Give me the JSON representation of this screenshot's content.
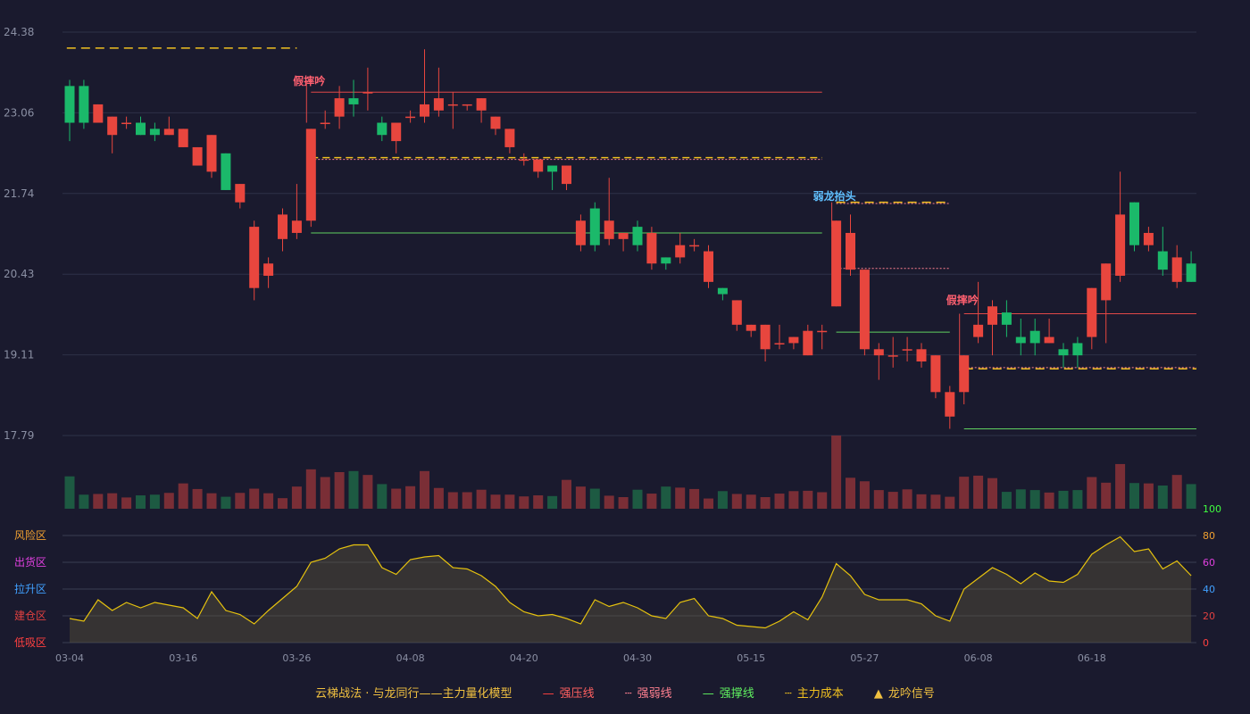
{
  "chart_data": {
    "type": "candlestick",
    "y_ticks": [
      "24.38",
      "23.06",
      "21.74",
      "20.43",
      "19.11",
      "17.79"
    ],
    "ylim": [
      17.79,
      24.38
    ],
    "x_tick_labels": [
      "03-04",
      "03-16",
      "03-26",
      "04-08",
      "04-20",
      "04-30",
      "05-15",
      "05-27",
      "06-08",
      "06-18"
    ],
    "x_tick_indices": [
      0,
      8,
      16,
      24,
      32,
      40,
      48,
      56,
      64,
      72
    ],
    "candles": [
      [
        23.5,
        22.9,
        23.6,
        22.6
      ],
      [
        23.5,
        22.9,
        23.6,
        22.8
      ],
      [
        22.9,
        23.2,
        23.2,
        22.9
      ],
      [
        22.7,
        23.0,
        23.0,
        22.4
      ],
      [
        22.9,
        22.9,
        23.0,
        22.8
      ],
      [
        22.9,
        22.7,
        23.0,
        22.7
      ],
      [
        22.8,
        22.7,
        22.9,
        22.6
      ],
      [
        22.7,
        22.8,
        23.0,
        22.7
      ],
      [
        22.5,
        22.8,
        22.8,
        22.5
      ],
      [
        22.2,
        22.5,
        22.5,
        22.2
      ],
      [
        22.1,
        22.7,
        22.7,
        22.0
      ],
      [
        22.4,
        21.8,
        22.4,
        21.8
      ],
      [
        21.6,
        21.9,
        21.9,
        21.5
      ],
      [
        20.2,
        21.2,
        21.3,
        20.0
      ],
      [
        20.4,
        20.6,
        20.7,
        20.2
      ],
      [
        21.0,
        21.4,
        21.5,
        20.8
      ],
      [
        21.1,
        21.3,
        21.9,
        21.0
      ],
      [
        21.3,
        22.8,
        22.8,
        21.2
      ],
      [
        22.9,
        22.9,
        23.1,
        22.8
      ],
      [
        23.0,
        23.3,
        23.5,
        22.8
      ],
      [
        23.3,
        23.2,
        23.6,
        23.0
      ],
      [
        23.4,
        23.4,
        23.8,
        23.1
      ],
      [
        22.9,
        22.7,
        23.0,
        22.6
      ],
      [
        22.6,
        22.9,
        22.9,
        22.4
      ],
      [
        23.0,
        23.0,
        23.1,
        22.9
      ],
      [
        23.0,
        23.2,
        24.1,
        22.9
      ],
      [
        23.1,
        23.3,
        23.8,
        23.0
      ],
      [
        23.2,
        23.2,
        23.4,
        22.8
      ],
      [
        23.2,
        23.2,
        23.2,
        23.1
      ],
      [
        23.1,
        23.3,
        23.3,
        22.9
      ],
      [
        22.8,
        23.0,
        23.0,
        22.7
      ],
      [
        22.5,
        22.8,
        22.8,
        22.4
      ],
      [
        22.3,
        22.3,
        22.4,
        22.2
      ],
      [
        22.1,
        22.3,
        22.3,
        22.0
      ],
      [
        22.2,
        22.1,
        22.2,
        21.8
      ],
      [
        21.9,
        22.2,
        22.2,
        21.8
      ],
      [
        20.9,
        21.3,
        21.4,
        20.8
      ],
      [
        21.5,
        20.9,
        21.6,
        20.8
      ],
      [
        21.0,
        21.3,
        22.0,
        20.9
      ],
      [
        21.0,
        21.1,
        21.1,
        20.8
      ],
      [
        21.2,
        20.9,
        21.3,
        20.8
      ],
      [
        20.6,
        21.1,
        21.2,
        20.5
      ],
      [
        20.7,
        20.6,
        20.7,
        20.5
      ],
      [
        20.7,
        20.9,
        21.1,
        20.6
      ],
      [
        20.9,
        20.9,
        21.0,
        20.8
      ],
      [
        20.3,
        20.8,
        20.9,
        20.2
      ],
      [
        20.2,
        20.1,
        20.2,
        20.0
      ],
      [
        19.6,
        20.0,
        20.0,
        19.5
      ],
      [
        19.5,
        19.6,
        19.6,
        19.4
      ],
      [
        19.2,
        19.6,
        19.6,
        19.0
      ],
      [
        19.3,
        19.3,
        19.6,
        19.2
      ],
      [
        19.3,
        19.4,
        19.4,
        19.2
      ],
      [
        19.1,
        19.5,
        19.6,
        19.1
      ],
      [
        19.5,
        19.5,
        19.6,
        19.2
      ],
      [
        19.9,
        21.3,
        21.3,
        19.9
      ],
      [
        20.5,
        21.1,
        21.4,
        20.4
      ],
      [
        19.2,
        20.5,
        20.5,
        19.1
      ],
      [
        19.1,
        19.2,
        19.3,
        18.7
      ],
      [
        19.1,
        19.1,
        19.4,
        18.9
      ],
      [
        19.2,
        19.2,
        19.4,
        19.0
      ],
      [
        19.0,
        19.2,
        19.3,
        18.9
      ],
      [
        18.5,
        19.1,
        19.1,
        18.4
      ],
      [
        18.1,
        18.5,
        18.6,
        17.9
      ],
      [
        18.5,
        19.1,
        19.1,
        18.3
      ],
      [
        19.4,
        19.6,
        20.3,
        19.3
      ],
      [
        19.6,
        19.9,
        20.0,
        19.1
      ],
      [
        19.8,
        19.6,
        20.0,
        19.4
      ],
      [
        19.4,
        19.3,
        19.7,
        19.1
      ],
      [
        19.5,
        19.3,
        19.7,
        19.1
      ],
      [
        19.3,
        19.4,
        19.7,
        19.3
      ],
      [
        19.2,
        19.1,
        19.3,
        18.9
      ],
      [
        19.3,
        19.1,
        19.4,
        18.9
      ],
      [
        19.4,
        20.2,
        20.2,
        19.2
      ],
      [
        20.0,
        20.6,
        20.6,
        19.3
      ],
      [
        20.4,
        21.4,
        22.1,
        20.3
      ],
      [
        21.6,
        20.9,
        21.6,
        20.8
      ],
      [
        20.9,
        21.1,
        21.2,
        20.8
      ],
      [
        20.8,
        20.5,
        21.2,
        20.4
      ],
      [
        20.3,
        20.7,
        20.9,
        20.2
      ],
      [
        20.6,
        20.3,
        20.8,
        20.3
      ]
    ],
    "volume": [
      92,
      40,
      42,
      44,
      32,
      38,
      40,
      45,
      72,
      56,
      44,
      34,
      45,
      57,
      44,
      30,
      63,
      112,
      90,
      104,
      107,
      96,
      70,
      57,
      64,
      107,
      59,
      47,
      47,
      54,
      40,
      40,
      35,
      38,
      36,
      82,
      63,
      57,
      37,
      33,
      54,
      43,
      63,
      60,
      56,
      29,
      50,
      42,
      40,
      33,
      43,
      50,
      51,
      47,
      208,
      88,
      78,
      53,
      48,
      55,
      41,
      40,
      34,
      91,
      94,
      87,
      48,
      55,
      53,
      46,
      51,
      53,
      90,
      74,
      127,
      73,
      72,
      66,
      96,
      70
    ],
    "indicator": [
      18,
      16,
      32,
      24,
      30,
      26,
      30,
      28,
      26,
      18,
      38,
      24,
      21,
      14,
      24,
      33,
      42,
      60,
      63,
      70,
      73,
      73,
      56,
      51,
      62,
      64,
      65,
      56,
      55,
      50,
      42,
      30,
      23,
      20,
      21,
      18,
      14,
      32,
      27,
      30,
      26,
      20,
      18,
      30,
      33,
      20,
      18,
      13,
      12,
      11,
      16,
      23,
      17,
      34,
      59,
      50,
      36,
      32,
      32,
      32,
      29,
      20,
      16,
      40,
      48,
      56,
      51,
      44,
      52,
      46,
      45,
      51,
      66,
      73,
      79,
      68,
      70,
      55,
      61,
      50
    ],
    "indicator_axis": [
      "100",
      "80",
      "60",
      "40",
      "20",
      "0"
    ],
    "zones": [
      "风险区",
      "出货区",
      "拉升区",
      "建仓区",
      "低吸区"
    ],
    "zone_colors": [
      "#f0a030",
      "#e040e0",
      "#40a0ff",
      "#e04040",
      "#ff4040"
    ],
    "annotations": [
      {
        "text": "假摔吟",
        "index": 17,
        "price": 23.58,
        "color": "#ff6070"
      },
      {
        "text": "弱龙抬头",
        "index": 54,
        "price": 21.7,
        "color": "#60c0ff"
      },
      {
        "text": "假摔吟",
        "index": 63,
        "price": 20.0,
        "color": "#ff6070"
      }
    ],
    "legend": {
      "title": "云梯战法 · 与龙同行——主力量化模型",
      "items": [
        {
          "label": "强压线",
          "color": "#ff4040",
          "style": "solid"
        },
        {
          "label": "强弱线",
          "color": "#ff8090",
          "style": "dotted"
        },
        {
          "label": "强撑线",
          "color": "#60f060",
          "style": "solid"
        },
        {
          "label": "主力成本",
          "color": "#f0c020",
          "style": "dashed"
        },
        {
          "label": "龙吟信号",
          "color": "#f0c040",
          "style": "triangle"
        }
      ]
    }
  },
  "colors": {
    "up": "#e8463e",
    "down": "#1bb96a",
    "indicator_line": "#e6c20e"
  }
}
